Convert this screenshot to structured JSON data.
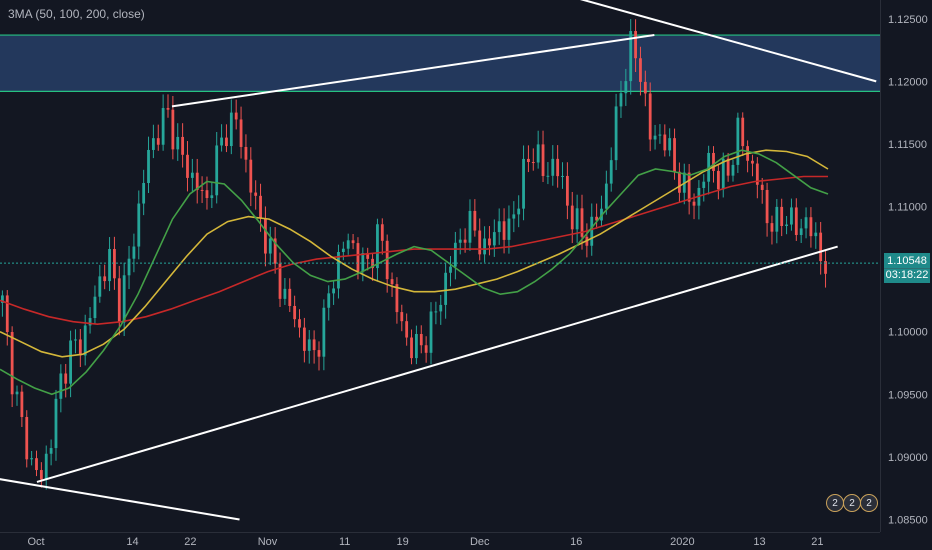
{
  "indicator_label": "3MA (50, 100, 200, close)",
  "price_axis": {
    "ticks": [
      "1.12500",
      "1.12000",
      "1.11500",
      "1.11000",
      "1.10548",
      "1.10000",
      "1.09500",
      "1.09000",
      "1.08500"
    ],
    "last_price": "1.10548",
    "countdown": "03:18:22"
  },
  "events": [
    "2",
    "2",
    "2"
  ],
  "colors": {
    "background": "#131722",
    "zone_fill": "#2a4470",
    "zone_border": "#26c281",
    "up_candle": "#26a69a",
    "down_candle": "#ef5350",
    "ma_50": "#43a047",
    "ma_100": "#d4b73a",
    "ma_200": "#c62828",
    "trendline": "#ffffff",
    "price_line": "#26a69a"
  },
  "chart_data": {
    "type": "candlestick",
    "y_range": [
      1.084,
      1.1265
    ],
    "zone": [
      1.1192,
      1.1237
    ],
    "x_labels": [
      "Oct",
      "14",
      "22",
      "Nov",
      "11",
      "19",
      "Dec",
      "16",
      "2020",
      "13",
      "21"
    ],
    "x_label_positions": [
      0,
      10,
      16,
      24,
      32,
      38,
      46,
      56,
      67,
      75,
      81
    ],
    "candles_count": 86,
    "close_series": [
      1.1023,
      1.0965,
      1.0925,
      1.0895,
      1.0882,
      1.0915,
      1.096,
      1.0985,
      1.099,
      1.101,
      1.104,
      1.106,
      1.102,
      1.105,
      1.1095,
      1.114,
      1.116,
      1.1175,
      1.115,
      1.113,
      1.112,
      1.11,
      1.1135,
      1.116,
      1.1172,
      1.114,
      1.1105,
      1.108,
      1.1055,
      1.103,
      1.1015,
      1.0995,
      1.098,
      1.1,
      1.104,
      1.1065,
      1.1075,
      1.105,
      1.106,
      1.108,
      1.104,
      1.101,
      1.099,
      1.0985,
      1.1,
      1.102,
      1.105,
      1.107,
      1.1085,
      1.108,
      1.106,
      1.109,
      1.1075,
      1.11,
      1.113,
      1.115,
      1.112,
      1.114,
      1.111,
      1.109,
      1.1075,
      1.1085,
      1.11,
      1.115,
      1.12,
      1.123,
      1.1205,
      1.115,
      1.116,
      1.114,
      1.112,
      1.1105,
      1.111,
      1.114,
      1.112,
      1.113,
      1.116,
      1.114,
      1.112,
      1.109,
      1.1085,
      1.1095,
      1.108,
      1.109,
      1.107,
      1.1054
    ],
    "ma_50": [
      1.097,
      1.0962,
      1.0955,
      1.095,
      1.0955,
      1.0968,
      1.0985,
      1.1005,
      1.103,
      1.106,
      1.109,
      1.111,
      1.112,
      1.1118,
      1.1105,
      1.1088,
      1.107,
      1.1055,
      1.1045,
      1.104,
      1.1042,
      1.1048,
      1.1055,
      1.1062,
      1.1068,
      1.1065,
      1.1055,
      1.1045,
      1.1035,
      1.103,
      1.1032,
      1.104,
      1.105,
      1.1062,
      1.1078,
      1.1095,
      1.111,
      1.1125,
      1.113,
      1.1128,
      1.1125,
      1.113,
      1.114,
      1.1145,
      1.1142,
      1.1135,
      1.1125,
      1.1115,
      1.111
    ],
    "ma_100": [
      1.1,
      1.0992,
      1.0984,
      1.098,
      1.0982,
      1.099,
      1.1002,
      1.102,
      1.104,
      1.106,
      1.1078,
      1.1088,
      1.1092,
      1.109,
      1.1082,
      1.1072,
      1.106,
      1.105,
      1.1042,
      1.1036,
      1.1032,
      1.1032,
      1.1034,
      1.1038,
      1.1042,
      1.1048,
      1.1055,
      1.1062,
      1.107,
      1.1078,
      1.1088,
      1.1098,
      1.1108,
      1.1118,
      1.1128,
      1.1136,
      1.1142,
      1.1145,
      1.1144,
      1.114,
      1.113
    ],
    "ma_200": [
      1.1025,
      1.1018,
      1.1012,
      1.1008,
      1.1006,
      1.1008,
      1.1012,
      1.1018,
      1.1025,
      1.1032,
      1.104,
      1.1048,
      1.1054,
      1.1058,
      1.106,
      1.1062,
      1.1064,
      1.1066,
      1.1066,
      1.1066,
      1.1066,
      1.1068,
      1.1072,
      1.1076,
      1.108,
      1.1086,
      1.1092,
      1.1098,
      1.1104,
      1.111,
      1.1116,
      1.112,
      1.1122,
      1.1124,
      1.1124
    ],
    "trendlines": [
      {
        "from": [
          17,
          1.118
        ],
        "to": [
          67,
          1.1237
        ]
      },
      {
        "from": [
          55,
          1.1275
        ],
        "to": [
          90,
          1.12
        ]
      },
      {
        "from": [
          3,
          1.088
        ],
        "to": [
          86,
          1.1068
        ]
      },
      {
        "from": [
          -3,
          1.0885
        ],
        "to": [
          24,
          1.085
        ]
      }
    ]
  }
}
